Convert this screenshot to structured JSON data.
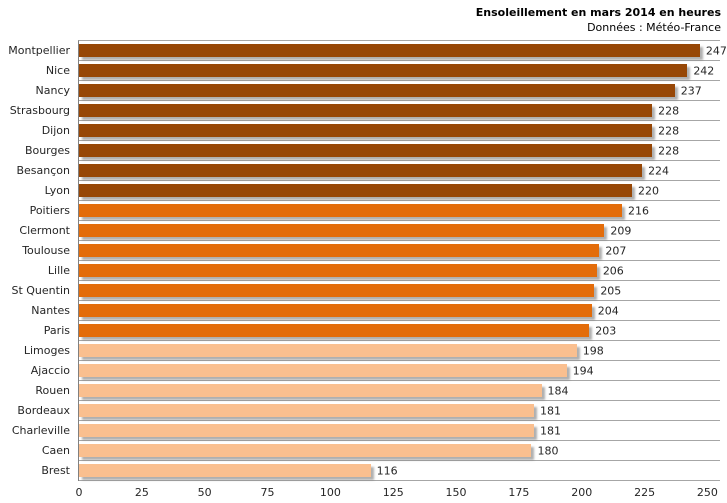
{
  "header": {
    "title": "Ensoleillement en mars 2014 en heures",
    "subtitle": "Données : Météo-France"
  },
  "chart_data": {
    "type": "bar",
    "orientation": "horizontal",
    "title": "Ensoleillement en mars 2014 en heures",
    "subtitle": "Données : Météo-France",
    "categories": [
      "Montpellier",
      "Nice",
      "Nancy",
      "Strasbourg",
      "Dijon",
      "Bourges",
      "Besançon",
      "Lyon",
      "Poitiers",
      "Clermont",
      "Toulouse",
      "Lille",
      "St Quentin",
      "Nantes",
      "Paris",
      "Limoges",
      "Ajaccio",
      "Rouen",
      "Bordeaux",
      "Charleville",
      "Caen",
      "Brest"
    ],
    "values": [
      247,
      242,
      237,
      228,
      228,
      228,
      224,
      220,
      216,
      209,
      207,
      206,
      205,
      204,
      203,
      198,
      194,
      184,
      181,
      181,
      180,
      116
    ],
    "color_groups": [
      "dark",
      "dark",
      "dark",
      "dark",
      "dark",
      "dark",
      "dark",
      "dark",
      "mid",
      "mid",
      "mid",
      "mid",
      "mid",
      "mid",
      "mid",
      "light",
      "light",
      "light",
      "light",
      "light",
      "light",
      "light"
    ],
    "palette": {
      "dark": "#974706",
      "mid": "#E36C0A",
      "light": "#FABF8F"
    },
    "value_labels_shown": true,
    "xlabel": "",
    "ylabel": "",
    "xlim": [
      0,
      255
    ],
    "xticks": [
      0,
      25,
      50,
      75,
      100,
      125,
      150,
      175,
      200,
      225,
      250
    ],
    "grid": "category-horizontal",
    "gridline_color": "#a6a6a6",
    "axis_line_color": "#808080",
    "legend": "none",
    "background_color": "#ffffff"
  }
}
